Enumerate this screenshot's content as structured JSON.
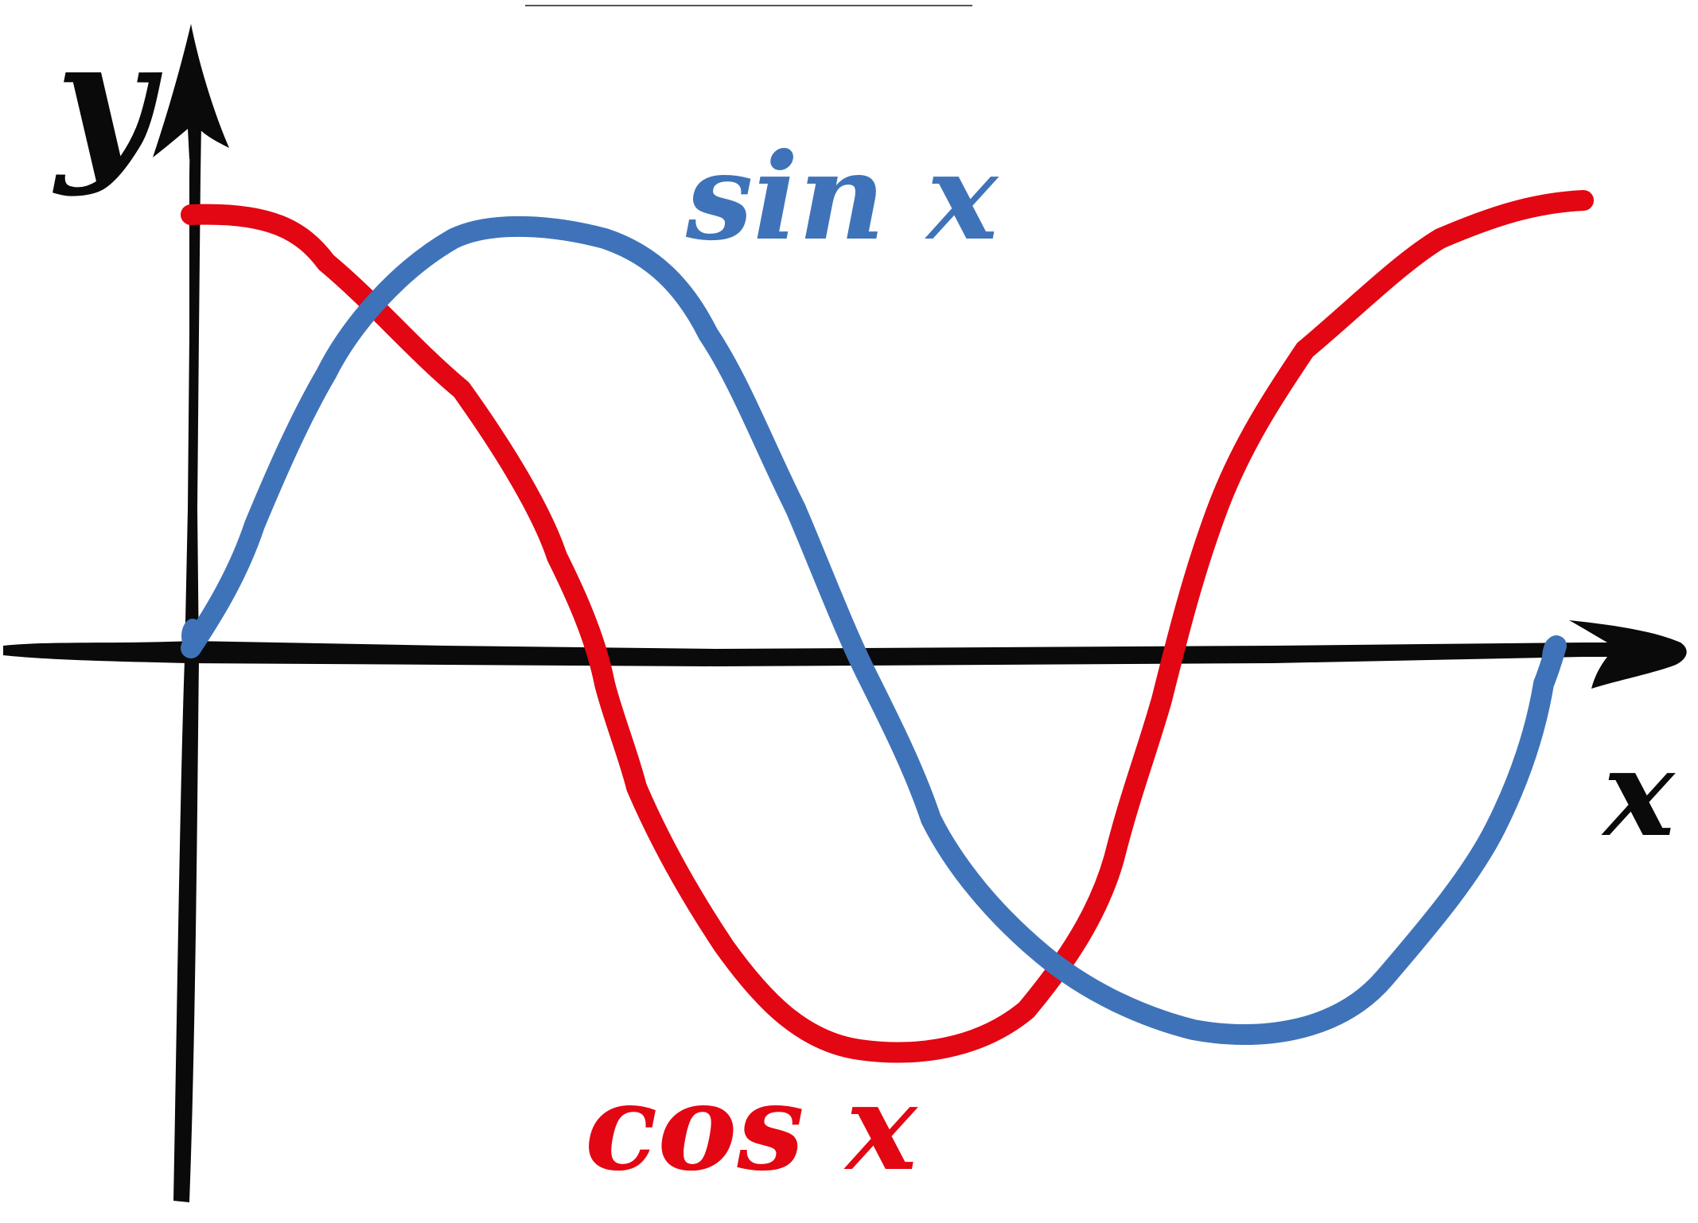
{
  "diagram": {
    "colors": {
      "axes": "#0a0a0a",
      "sin": "#3f73b9",
      "cos": "#e30613",
      "top_rule": "#555555"
    },
    "axes": {
      "x_label": "x",
      "y_label": "y"
    },
    "curves": {
      "sin_label": "sin x",
      "cos_label": "cos x"
    }
  }
}
